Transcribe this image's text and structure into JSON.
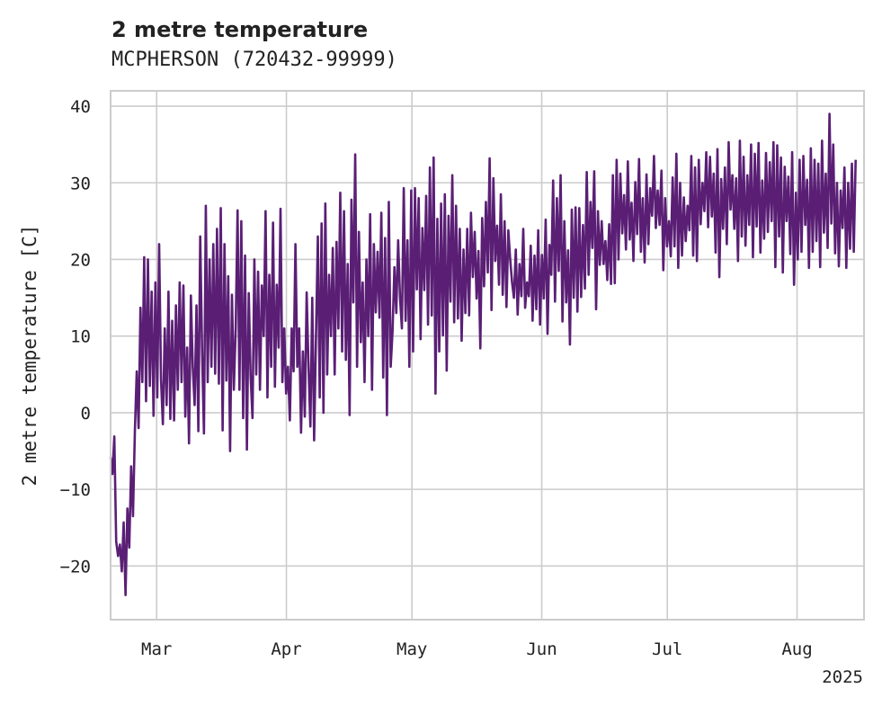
{
  "chart_data": {
    "type": "line",
    "title": "2 metre temperature",
    "subtitle": "MCPHERSON (720432-99999)",
    "ylabel": "2 metre temperature [C]",
    "xlabel": "",
    "x_tick_labels": [
      "Mar",
      "Apr",
      "May",
      "Jun",
      "Jul",
      "Aug"
    ],
    "x_tick_dates": [
      "2025-03-01",
      "2025-04-01",
      "2025-05-01",
      "2025-06-01",
      "2025-07-01",
      "2025-08-01"
    ],
    "x_offset_label": "2025",
    "xlim": [
      "2025-02-18",
      "2025-08-17"
    ],
    "ylim": [
      -27,
      42
    ],
    "y_ticks": [
      -20,
      -10,
      0,
      10,
      20,
      30,
      40
    ],
    "grid": true,
    "line_color": "#5a1f75",
    "series": [
      {
        "x_start": "2025-02-18",
        "x_end": "2025-08-15",
        "values": [
          -5.8,
          -8.0,
          -3.1,
          -16.8,
          -18.7,
          -17.2,
          -20.7,
          -14.3,
          -23.8,
          -12.5,
          -17.6,
          -7.0,
          -13.5,
          -2.5,
          5.4,
          -2.0,
          13.7,
          4.0,
          20.3,
          1.5,
          20.0,
          3.5,
          15.8,
          -0.4,
          17.0,
          2.0,
          22.0,
          4.4,
          -1.5,
          11.0,
          1.0,
          15.8,
          -0.8,
          12.0,
          -1.0,
          14.0,
          3.0,
          17.0,
          4.0,
          16.6,
          -0.5,
          8.5,
          -4.0,
          15.3,
          6.0,
          1.0,
          14.0,
          -2.4,
          23.0,
          8.0,
          -2.7,
          27.0,
          4.0,
          20.0,
          6.0,
          22.0,
          5.1,
          24.0,
          3.8,
          26.7,
          -2.3,
          22.0,
          4.2,
          17.8,
          -5.0,
          15.4,
          3.0,
          11.0,
          26.4,
          3.0,
          25.0,
          -0.7,
          20.5,
          -4.8,
          15.6,
          4.7,
          -0.7,
          20.0,
          5.0,
          18.4,
          3.0,
          16.6,
          10.0,
          26.3,
          2.0,
          18.0,
          6.0,
          24.8,
          3.4,
          16.7,
          8.5,
          26.6,
          4.0,
          11.0,
          2.5,
          6.0,
          -1.0,
          11.0,
          5.4,
          22.0,
          6.0,
          11.0,
          -2.6,
          8.0,
          -0.5,
          15.7,
          6.0,
          -1.8,
          15.0,
          -3.6,
          10.0,
          23.0,
          2.0,
          24.7,
          0.0,
          27.3,
          5.0,
          18.0,
          10.0,
          21.5,
          5.0,
          22.3,
          11.0,
          28.7,
          8.0,
          26.3,
          6.9,
          19.4,
          -0.3,
          27.8,
          14.4,
          33.7,
          6.0,
          23.6,
          9.2,
          17.0,
          4.0,
          20.0,
          10.0,
          25.9,
          3.0,
          22.0,
          13.1,
          21.0,
          12.4,
          26.1,
          4.6,
          22.8,
          -0.3,
          27.5,
          6.0,
          10.6,
          19.0,
          13.0,
          22.5,
          15.0,
          11.0,
          29.3,
          12.0,
          22.5,
          6.0,
          29.0,
          8.0,
          29.3,
          16.1,
          28.0,
          9.6,
          24.1,
          16.0,
          28.3,
          11.5,
          32.0,
          12.7,
          33.3,
          2.5,
          25.3,
          8.0,
          27.3,
          10.1,
          28.5,
          5.5,
          25.7,
          14.5,
          31.0,
          11.8,
          27.0,
          12.3,
          24.0,
          9.4,
          21.3,
          13.0,
          24.0,
          12.7,
          26.1,
          17.7,
          23.6,
          14.9,
          21.1,
          8.4,
          25.4,
          16.5,
          27.5,
          18.3,
          33.2,
          13.4,
          30.6,
          19.8,
          24.4,
          16.7,
          28.5,
          15.4,
          25.0,
          13.8,
          23.8,
          20.0,
          17.0,
          15.0,
          21.3,
          12.8,
          19.4,
          15.2,
          24.0,
          13.7,
          17.0,
          15.2,
          21.8,
          12.0,
          20.5,
          13.5,
          23.8,
          11.5,
          20.6,
          14.9,
          25.2,
          10.3,
          21.9,
          18.0,
          30.3,
          14.5,
          28.0,
          18.5,
          31.0,
          11.9,
          25.0,
          14.4,
          21.2,
          8.9,
          26.5,
          15.0,
          26.8,
          13.2,
          26.7,
          15.1,
          24.5,
          16.2,
          31.4,
          18.0,
          27.5,
          21.5,
          31.5,
          13.5,
          26.3,
          19.3,
          25.0,
          19.4,
          22.4,
          17.3,
          24.6,
          16.8,
          31.0,
          16.9,
          33.0,
          20.0,
          31.2,
          23.4,
          28.4,
          21.3,
          32.8,
          22.6,
          27.4,
          19.8,
          30.1,
          23.3,
          33.1,
          21.0,
          28.0,
          19.6,
          31.1,
          22.0,
          29.3,
          25.7,
          33.5,
          24.1,
          29.0,
          24.5,
          31.6,
          18.6,
          28.0,
          21.7,
          25.0,
          20.4,
          30.7,
          21.7,
          33.8,
          18.9,
          30.0,
          20.5,
          28.1,
          22.4,
          27.0,
          23.8,
          33.5,
          20.5,
          32.0,
          19.8,
          33.0,
          24.6,
          30.0,
          26.3,
          34.0,
          24.2,
          33.4,
          25.6,
          31.2,
          20.9,
          34.4,
          17.7,
          30.5,
          24.0,
          32.0,
          22.0,
          35.3,
          26.5,
          31.0,
          24.0,
          30.6,
          19.8,
          35.5,
          23.0,
          33.4,
          21.8,
          31.0,
          24.5,
          35.0,
          20.3,
          33.8,
          24.3,
          35.2,
          20.9,
          30.3,
          22.7,
          33.9,
          23.6,
          32.7,
          25.0,
          35.3,
          19.0,
          34.9,
          23.0,
          33.3,
          18.3,
          32.1,
          25.0,
          30.8,
          20.7,
          34.0,
          16.7,
          28.7,
          20.0,
          33.0,
          21.0,
          33.5,
          24.5,
          30.4,
          18.9,
          34.5,
          21.0,
          33.0,
          22.4,
          32.5,
          19.0,
          35.5,
          23.5,
          31.2,
          21.5,
          39.0,
          24.7,
          35.0,
          20.8,
          30.0,
          19.1,
          29.0,
          24.1,
          32.0,
          18.9,
          30.0,
          21.4,
          32.5,
          21.0,
          33.0
        ]
      }
    ]
  }
}
